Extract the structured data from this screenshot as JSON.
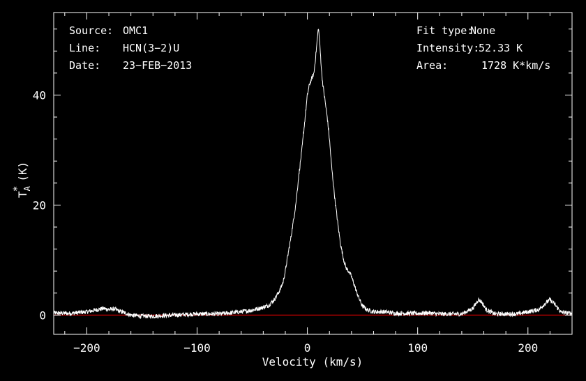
{
  "header": {
    "source_label": "Source:",
    "source_value": "OMC1",
    "line_label": "Line:",
    "line_value": "HCN(3−2)U",
    "date_label": "Date:",
    "date_value": "23−FEB−2013",
    "fit_label": "Fit type:",
    "fit_value": "None",
    "intensity_label": "Intensity:",
    "intensity_value": "52.33 K",
    "area_label": "Area:",
    "area_value": "1728 K*km/s"
  },
  "chart_data": {
    "type": "line",
    "xlabel": "Velocity (km/s)",
    "ylabel_main": "T",
    "ylabel_sup": "*",
    "ylabel_sub": "A",
    "ylabel_unit": "(K)",
    "xlim": [
      -230,
      240
    ],
    "ylim": [
      -3.5,
      55
    ],
    "xticks": [
      -200,
      -100,
      0,
      100,
      200
    ],
    "xtick_labels": [
      "−200",
      "−100",
      "0",
      "100",
      "200"
    ],
    "yticks": [
      0,
      20,
      40
    ],
    "ytick_labels": [
      "0",
      "20",
      "40"
    ],
    "baseline": 0,
    "grid": false,
    "colors": {
      "spectrum": "#ffffff",
      "baseline": "#cc0000",
      "axes": "#ffffff"
    },
    "series": [
      {
        "x": [
          -230,
          -215,
          -200,
          -190,
          -185,
          -180,
          -175,
          -170,
          -160,
          -150,
          -140,
          -120,
          -100,
          -80,
          -60,
          -50,
          -40,
          -35,
          -30,
          -25,
          -22,
          -20,
          -18,
          -15,
          -12,
          -10,
          -8,
          -5,
          -2,
          0,
          2,
          4,
          6,
          8,
          10,
          11,
          12,
          13,
          14,
          16,
          18,
          20,
          22,
          25,
          28,
          30,
          33,
          35,
          38,
          40,
          42,
          45,
          48,
          50,
          55,
          60,
          70,
          80,
          100,
          110,
          120,
          140,
          150,
          155,
          158,
          162,
          170,
          190,
          210,
          215,
          220,
          225,
          230,
          240
        ],
        "y": [
          0.4,
          0.3,
          0.6,
          1.0,
          1.2,
          1.0,
          1.1,
          0.7,
          0.0,
          -0.2,
          -0.2,
          0.0,
          0.2,
          0.2,
          0.6,
          0.9,
          1.4,
          1.8,
          2.8,
          4.5,
          6.0,
          8.0,
          10.5,
          14,
          18,
          21,
          25,
          30,
          36,
          40,
          42,
          43,
          44,
          48,
          52.3,
          50,
          47,
          44,
          42,
          39,
          36,
          32,
          27,
          21,
          16,
          13,
          10,
          8.6,
          7.8,
          7.0,
          5.8,
          4.0,
          2.5,
          1.6,
          0.9,
          0.6,
          0.6,
          0.3,
          0.3,
          0.4,
          0.2,
          0.2,
          1.2,
          2.8,
          2.4,
          1.0,
          0.2,
          0.2,
          1.0,
          2.0,
          2.8,
          1.8,
          0.5,
          0.3
        ]
      }
    ]
  }
}
